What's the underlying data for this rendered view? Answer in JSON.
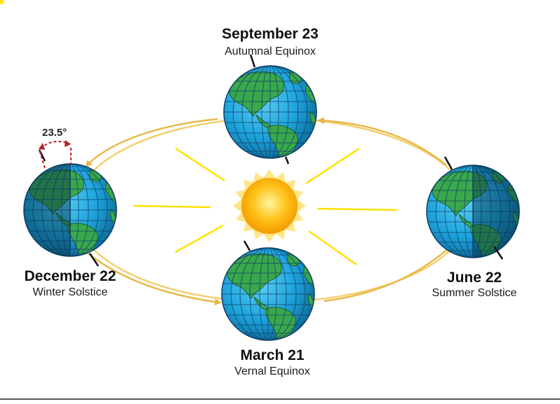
{
  "title": "",
  "tilt": {
    "label": "23.5°"
  },
  "positions": {
    "september": {
      "date": "September 23",
      "event": "Autumnal Equinox"
    },
    "december": {
      "date": "December 22",
      "event": "Winter Solstice"
    },
    "march": {
      "date": "March 21",
      "event": "Vernal Equinox"
    },
    "june": {
      "date": "June 22",
      "event": "Summer Solstice"
    }
  },
  "colors": {
    "orbit": "#f3cf6e",
    "arrow": "#e8b84a",
    "sun_core": "#ffb300",
    "sun_glow": "#ffe27a",
    "sun_ray": "#ffe100",
    "ocean": "#1da3dc",
    "ocean_dark": "#13638c",
    "land": "#3aa84c",
    "land_dark": "#1f5f2a",
    "grid": "#0d3f66",
    "tilt_marker": "#b3202a"
  },
  "icons": {
    "sun": "sun-icon",
    "earth": "earth-globe-icon",
    "tilt": "tilt-angle-icon"
  }
}
